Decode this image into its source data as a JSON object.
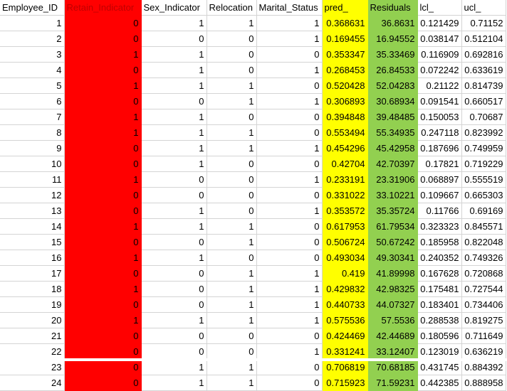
{
  "colors": {
    "retain_fill": "#ff0000",
    "retain_header_text": "#c00000",
    "pred_fill": "#ffff00",
    "residuals_fill": "#92d050",
    "gridline": "#d4d4d4"
  },
  "headers": [
    "Employee_ID",
    "Retain_Indicator",
    "Sex_Indicator",
    "Relocation",
    "Marital_Status",
    "pred_",
    "Residuals",
    "lcl_",
    "ucl_"
  ],
  "rows": [
    [
      "1",
      "0",
      "1",
      "1",
      "1",
      "0.368631",
      "36.8631",
      "0.121429",
      "0.71152"
    ],
    [
      "2",
      "0",
      "0",
      "0",
      "1",
      "0.169455",
      "16.94552",
      "0.038147",
      "0.512104"
    ],
    [
      "3",
      "1",
      "1",
      "0",
      "0",
      "0.353347",
      "35.33469",
      "0.116909",
      "0.692816"
    ],
    [
      "4",
      "0",
      "1",
      "0",
      "1",
      "0.268453",
      "26.84533",
      "0.072242",
      "0.633619"
    ],
    [
      "5",
      "1",
      "1",
      "1",
      "0",
      "0.520428",
      "52.04283",
      "0.21122",
      "0.814739"
    ],
    [
      "6",
      "0",
      "0",
      "1",
      "1",
      "0.306893",
      "30.68934",
      "0.091541",
      "0.660517"
    ],
    [
      "7",
      "1",
      "1",
      "0",
      "0",
      "0.394848",
      "39.48485",
      "0.150053",
      "0.70687"
    ],
    [
      "8",
      "1",
      "1",
      "1",
      "0",
      "0.553494",
      "55.34935",
      "0.247118",
      "0.823992"
    ],
    [
      "9",
      "0",
      "1",
      "1",
      "1",
      "0.454296",
      "45.42958",
      "0.187696",
      "0.749959"
    ],
    [
      "10",
      "0",
      "1",
      "0",
      "0",
      "0.42704",
      "42.70397",
      "0.17821",
      "0.719229"
    ],
    [
      "11",
      "1",
      "0",
      "0",
      "1",
      "0.233191",
      "23.31906",
      "0.068897",
      "0.555519"
    ],
    [
      "12",
      "0",
      "0",
      "0",
      "0",
      "0.331022",
      "33.10221",
      "0.109667",
      "0.665303"
    ],
    [
      "13",
      "0",
      "1",
      "0",
      "1",
      "0.353572",
      "35.35724",
      "0.11766",
      "0.69169"
    ],
    [
      "14",
      "1",
      "1",
      "1",
      "0",
      "0.617953",
      "61.79534",
      "0.323323",
      "0.845571"
    ],
    [
      "15",
      "0",
      "0",
      "1",
      "0",
      "0.506724",
      "50.67242",
      "0.185958",
      "0.822048"
    ],
    [
      "16",
      "1",
      "1",
      "0",
      "0",
      "0.493034",
      "49.30341",
      "0.240352",
      "0.749326"
    ],
    [
      "17",
      "0",
      "0",
      "1",
      "1",
      "0.419",
      "41.89998",
      "0.167628",
      "0.720868"
    ],
    [
      "18",
      "1",
      "0",
      "1",
      "1",
      "0.429832",
      "42.98325",
      "0.175481",
      "0.727544"
    ],
    [
      "19",
      "0",
      "0",
      "1",
      "1",
      "0.440733",
      "44.07327",
      "0.183401",
      "0.734406"
    ],
    [
      "20",
      "1",
      "1",
      "1",
      "1",
      "0.575536",
      "57.5536",
      "0.288538",
      "0.819275"
    ],
    [
      "21",
      "0",
      "0",
      "0",
      "0",
      "0.424469",
      "42.44689",
      "0.180596",
      "0.711649"
    ],
    [
      "22",
      "0",
      "0",
      "0",
      "1",
      "0.331241",
      "33.12407",
      "0.123019",
      "0.636219"
    ],
    [
      "23",
      "0",
      "1",
      "1",
      "0",
      "0.706819",
      "70.68185",
      "0.431745",
      "0.884392"
    ],
    [
      "24",
      "0",
      "1",
      "1",
      "0",
      "0.715923",
      "71.59231",
      "0.442385",
      "0.888958"
    ]
  ]
}
